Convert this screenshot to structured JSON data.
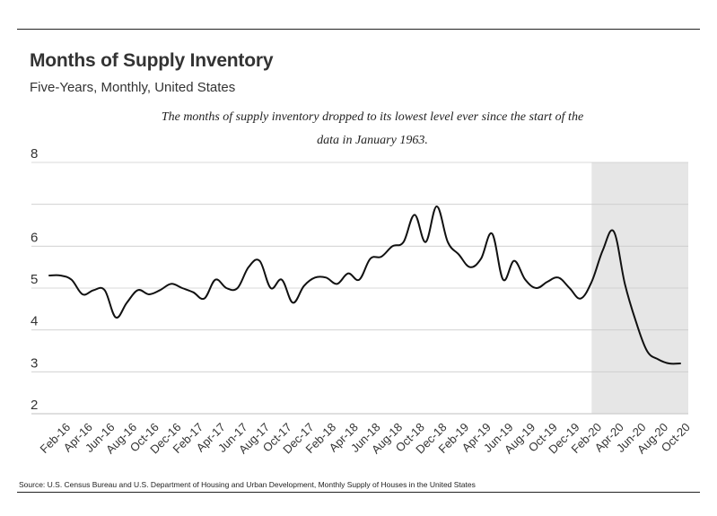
{
  "header": {
    "title": "Months of Supply Inventory",
    "subtitle": "Five-Years, Monthly, United States"
  },
  "annotation": "The months of supply inventory dropped to its lowest level ever since the start of the data in January 1963.",
  "source": "Source:  U.S. Census Bureau and U.S. Department of Housing and Urban Development, Monthly Supply of Houses in the United States",
  "colors": {
    "line": "#111111",
    "shaded_region": "#e6e6e6",
    "grid": "#cccccc"
  },
  "chart_data": {
    "type": "line",
    "title": "Months of Supply Inventory",
    "subtitle": "Five-Years, Monthly, United States",
    "xlabel": "",
    "ylabel": "",
    "ylim": [
      2,
      8
    ],
    "yticks": [
      2,
      3,
      4,
      5,
      6,
      7,
      8
    ],
    "ytick_labels": [
      "2",
      "3",
      "4",
      "5",
      "6",
      "",
      "8"
    ],
    "grid": "horizontal",
    "x": [
      "Jan-16",
      "Feb-16",
      "Mar-16",
      "Apr-16",
      "May-16",
      "Jun-16",
      "Jul-16",
      "Aug-16",
      "Sep-16",
      "Oct-16",
      "Nov-16",
      "Dec-16",
      "Jan-17",
      "Feb-17",
      "Mar-17",
      "Apr-17",
      "May-17",
      "Jun-17",
      "Jul-17",
      "Aug-17",
      "Sep-17",
      "Oct-17",
      "Nov-17",
      "Dec-17",
      "Jan-18",
      "Feb-18",
      "Mar-18",
      "Apr-18",
      "May-18",
      "Jun-18",
      "Jul-18",
      "Aug-18",
      "Sep-18",
      "Oct-18",
      "Nov-18",
      "Dec-18",
      "Jan-19",
      "Feb-19",
      "Mar-19",
      "Apr-19",
      "May-19",
      "Jun-19",
      "Jul-19",
      "Aug-19",
      "Sep-19",
      "Oct-19",
      "Nov-19",
      "Dec-19",
      "Jan-20",
      "Feb-20",
      "Mar-20",
      "Apr-20",
      "May-20",
      "Jun-20",
      "Jul-20",
      "Aug-20",
      "Sep-20",
      "Oct-20"
    ],
    "xtick_labels": [
      "Feb-16",
      "Apr-16",
      "Jun-16",
      "Aug-16",
      "Oct-16",
      "Dec-16",
      "Feb-17",
      "Apr-17",
      "Jun-17",
      "Aug-17",
      "Oct-17",
      "Dec-17",
      "Feb-18",
      "Apr-18",
      "Jun-18",
      "Aug-18",
      "Oct-18",
      "Dec-18",
      "Feb-19",
      "Apr-19",
      "Jun-19",
      "Aug-19",
      "Oct-19",
      "Dec-19",
      "Feb-20",
      "Apr-20",
      "Jun-20",
      "Aug-20",
      "Oct-20"
    ],
    "series": [
      {
        "values": [
          5.3,
          5.3,
          5.2,
          4.85,
          4.95,
          4.95,
          4.3,
          4.65,
          4.95,
          4.85,
          4.95,
          5.1,
          5.0,
          4.9,
          4.75,
          5.2,
          5.0,
          5.0,
          5.5,
          5.65,
          5.0,
          5.2,
          4.65,
          5.05,
          5.25,
          5.25,
          5.1,
          5.35,
          5.2,
          5.7,
          5.75,
          6.0,
          6.1,
          6.75,
          6.1,
          6.95,
          6.1,
          5.8,
          5.5,
          5.7,
          6.3,
          5.2,
          5.65,
          5.2,
          5.0,
          5.15,
          5.25,
          5.0,
          4.75,
          5.15,
          5.9,
          6.35,
          5.1,
          4.2,
          3.5,
          3.3,
          3.2,
          3.2
        ]
      }
    ],
    "shaded_region": {
      "from": "Feb-20",
      "to": "Oct-20"
    },
    "legend": "none"
  }
}
